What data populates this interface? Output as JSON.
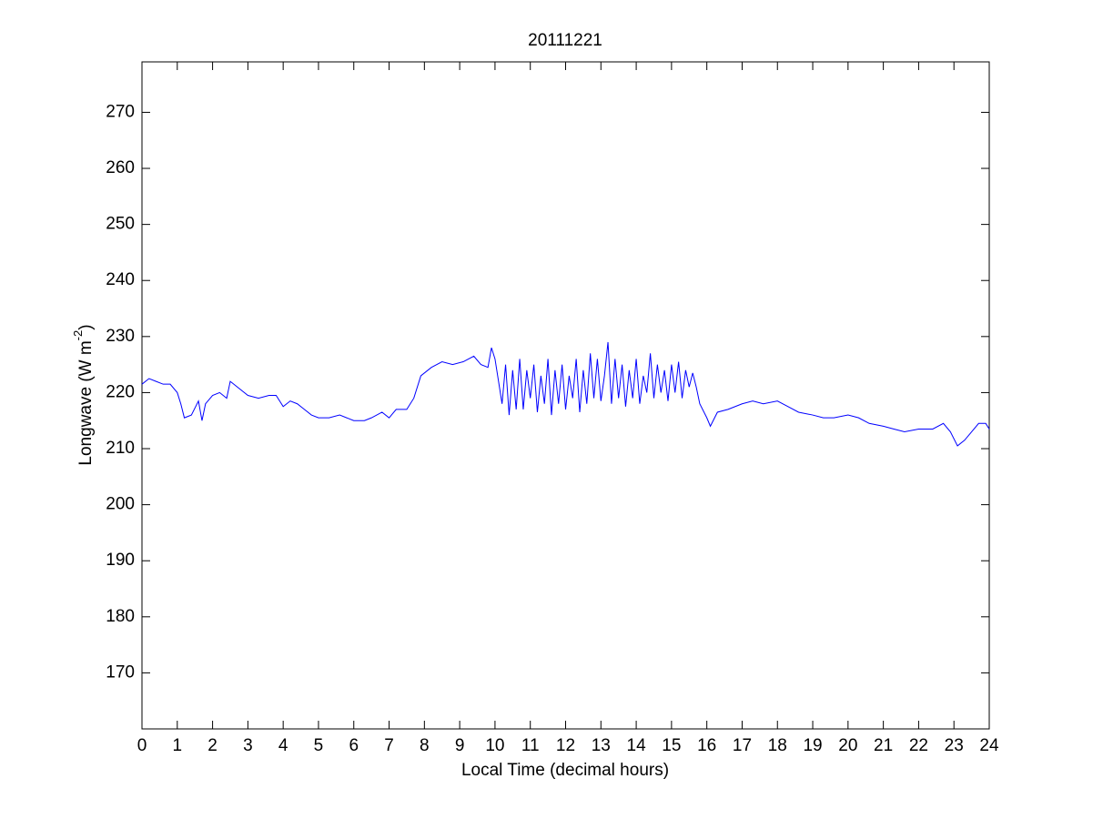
{
  "chart_data": {
    "type": "line",
    "title": "20111221",
    "xlabel": "Local Time (decimal hours)",
    "ylabel_parts": [
      "Longwave (W m",
      "-2",
      ")"
    ],
    "xlim": [
      0,
      24
    ],
    "ylim": [
      160,
      279
    ],
    "xticks": [
      0,
      1,
      2,
      3,
      4,
      5,
      6,
      7,
      8,
      9,
      10,
      11,
      12,
      13,
      14,
      15,
      16,
      17,
      18,
      19,
      20,
      21,
      22,
      23,
      24
    ],
    "yticks": [
      170,
      180,
      190,
      200,
      210,
      220,
      230,
      240,
      250,
      260,
      270
    ],
    "grid": false,
    "x": [
      0,
      0.2,
      0.4,
      0.6,
      0.8,
      1.0,
      1.1,
      1.2,
      1.4,
      1.6,
      1.7,
      1.8,
      2.0,
      2.2,
      2.4,
      2.5,
      2.7,
      3.0,
      3.3,
      3.6,
      3.8,
      4.0,
      4.2,
      4.4,
      4.6,
      4.8,
      5.0,
      5.3,
      5.6,
      6.0,
      6.3,
      6.5,
      6.8,
      7.0,
      7.2,
      7.5,
      7.7,
      7.9,
      8.2,
      8.5,
      8.8,
      9.1,
      9.4,
      9.6,
      9.8,
      9.9,
      10.0,
      10.1,
      10.2,
      10.3,
      10.4,
      10.5,
      10.6,
      10.7,
      10.8,
      10.9,
      11.0,
      11.1,
      11.2,
      11.3,
      11.4,
      11.5,
      11.6,
      11.7,
      11.8,
      11.9,
      12.0,
      12.1,
      12.2,
      12.3,
      12.4,
      12.5,
      12.6,
      12.7,
      12.8,
      12.9,
      13.0,
      13.1,
      13.2,
      13.3,
      13.4,
      13.5,
      13.6,
      13.7,
      13.8,
      13.9,
      14.0,
      14.1,
      14.2,
      14.3,
      14.4,
      14.5,
      14.6,
      14.7,
      14.8,
      14.9,
      15.0,
      15.1,
      15.2,
      15.3,
      15.4,
      15.5,
      15.6,
      15.7,
      15.8,
      16.0,
      16.1,
      16.3,
      16.6,
      17.0,
      17.3,
      17.6,
      18.0,
      18.3,
      18.6,
      19.0,
      19.3,
      19.6,
      20.0,
      20.3,
      20.6,
      21.0,
      21.3,
      21.6,
      22.0,
      22.4,
      22.7,
      22.9,
      23.1,
      23.3,
      23.5,
      23.7,
      23.9,
      24.0
    ],
    "series": [
      {
        "color": "#0000ff",
        "values": [
          221.5,
          222.5,
          222,
          221.5,
          221.5,
          220,
          218,
          215.5,
          216,
          218.5,
          215,
          218,
          219.5,
          220,
          219,
          222,
          221,
          219.5,
          219,
          219.5,
          219.5,
          217.5,
          218.5,
          218,
          217,
          216,
          215.5,
          215.5,
          216,
          215,
          215,
          215.5,
          216.5,
          215.5,
          217,
          217,
          219,
          223,
          224.5,
          225.5,
          225,
          225.5,
          226.5,
          225,
          224.5,
          228,
          226,
          222,
          218,
          225,
          216,
          224,
          217,
          226,
          217,
          224,
          219,
          225,
          216.5,
          223,
          218,
          226,
          216,
          224,
          218,
          225,
          217,
          223,
          219,
          226,
          216.5,
          224,
          218,
          227,
          219,
          226,
          218.5,
          223,
          229,
          218,
          226,
          219,
          225,
          217.5,
          224,
          219,
          226,
          218,
          223,
          220,
          227,
          219,
          225,
          220,
          224,
          218.5,
          225,
          220,
          225.5,
          219,
          224,
          221,
          223.5,
          221,
          218,
          215.5,
          214,
          216.5,
          217,
          218,
          218.5,
          218,
          218.5,
          217.5,
          216.5,
          216,
          215.5,
          215.5,
          216,
          215.5,
          214.5,
          214,
          213.5,
          213,
          213.5,
          213.5,
          214.5,
          213,
          210.5,
          211.5,
          213,
          214.5,
          214.5,
          213.5
        ]
      }
    ]
  }
}
